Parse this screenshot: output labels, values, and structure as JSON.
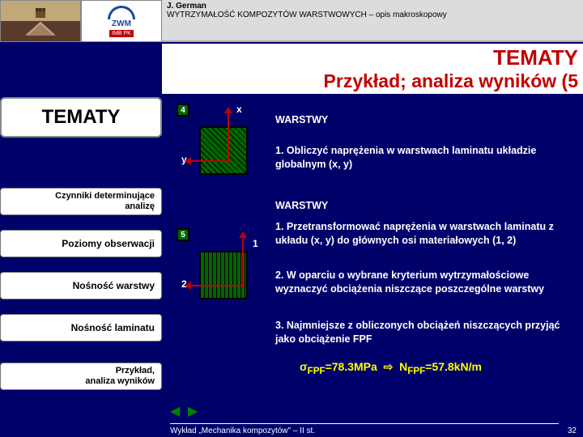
{
  "meta": {
    "author": "J. German",
    "subtitle": "WYTRZYMAŁOŚĆ KOMPOZYTÓW WARSTWOWYCH – opis makroskopowy"
  },
  "header": {
    "line1": "TEMATY",
    "line2": "Przykład; analiza wyników (5"
  },
  "sidebar": {
    "title": "TEMATY",
    "items": [
      {
        "label": "Czynniki determinujące analizę"
      },
      {
        "label": "Poziomy obserwacji"
      },
      {
        "label": "Nośność warstwy"
      },
      {
        "label": "Nośność laminatu"
      },
      {
        "label": "Przykład, analiza wyników"
      }
    ]
  },
  "diagram1": {
    "num": "4",
    "axis_x": "x",
    "axis_y": "y",
    "colors": {
      "fill": "#006600",
      "border": "#000000",
      "axis": "#c00000",
      "hatchAngle": 45
    }
  },
  "diagram2": {
    "num": "5",
    "axis_1": "1",
    "axis_2": "2",
    "colors": {
      "fill": "#006600",
      "border": "#000000",
      "axis": "#c00000",
      "hatchAngle": 90
    }
  },
  "content": {
    "section1_title": "WARSTWY",
    "section1_item1": "1. Obliczyć naprężenia w warstwach laminatu układzie globalnym (x, y)",
    "section2_title": "WARSTWY",
    "section2_item1": "1. Przetransformować naprężenia w warstwach laminatu z układu (x, y) do głównych osi materiałowych (1, 2)",
    "section2_item2": "2. W oparciu o wybrane kryterium wytrzy­małościowe wyznaczyć obciążenia niszczące poszczególne warstwy",
    "section2_item3": "3. Najmniejsze z obliczonych obciążeń niszczących przyjąć jako obciążenie FPF",
    "result_sigma": "σ",
    "result_sigma_sub": "FPF",
    "result_sigma_val": "=78.3MPa",
    "result_arrow": "⇨",
    "result_n": "N",
    "result_n_sub": "FPF",
    "result_n_val": "=57.8kN/m"
  },
  "footer": {
    "text": "Wykład „Mechanika kompozytów\" – II st.",
    "page": "32"
  },
  "logos": {
    "zwm": "ZWM",
    "zwm_sub": "IMB PK"
  },
  "palette": {
    "page_bg": "#00006b",
    "panel_bg": "#ffffff",
    "accent_red": "#c00000",
    "accent_yellow": "#ffff00",
    "diagram_green": "#006600",
    "header_gray": "#dcdcdc"
  }
}
